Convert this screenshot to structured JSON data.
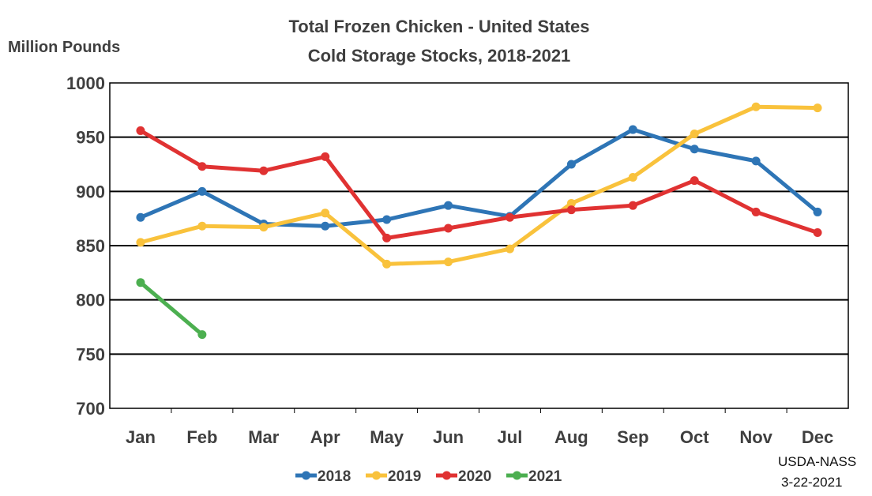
{
  "chart_data": {
    "type": "line",
    "title": "Total Frozen Chicken - United States",
    "subtitle": "Cold Storage Stocks, 2018-2021",
    "ylabel": "Million Pounds",
    "xlabel": "",
    "categories": [
      "Jan",
      "Feb",
      "Mar",
      "Apr",
      "May",
      "Jun",
      "Jul",
      "Aug",
      "Sep",
      "Oct",
      "Nov",
      "Dec"
    ],
    "ylim": [
      700,
      1000
    ],
    "yticks": [
      700,
      750,
      800,
      850,
      900,
      950,
      1000
    ],
    "grid": true,
    "legend_position": "bottom",
    "series": [
      {
        "name": "2018",
        "color": "#2e75b6",
        "values": [
          876,
          900,
          870,
          868,
          874,
          887,
          877,
          925,
          957,
          939,
          928,
          881
        ]
      },
      {
        "name": "2019",
        "color": "#f9c23c",
        "values": [
          853,
          868,
          867,
          880,
          833,
          835,
          847,
          889,
          913,
          953,
          978,
          977
        ]
      },
      {
        "name": "2020",
        "color": "#e03232",
        "values": [
          956,
          923,
          919,
          932,
          857,
          866,
          876,
          883,
          887,
          910,
          881,
          862
        ]
      },
      {
        "name": "2021",
        "color": "#4caf50",
        "values": [
          816,
          768,
          null,
          null,
          null,
          null,
          null,
          null,
          null,
          null,
          null,
          null
        ]
      }
    ]
  },
  "source": {
    "line1": "USDA-NASS",
    "line2": "3-22-2021"
  }
}
